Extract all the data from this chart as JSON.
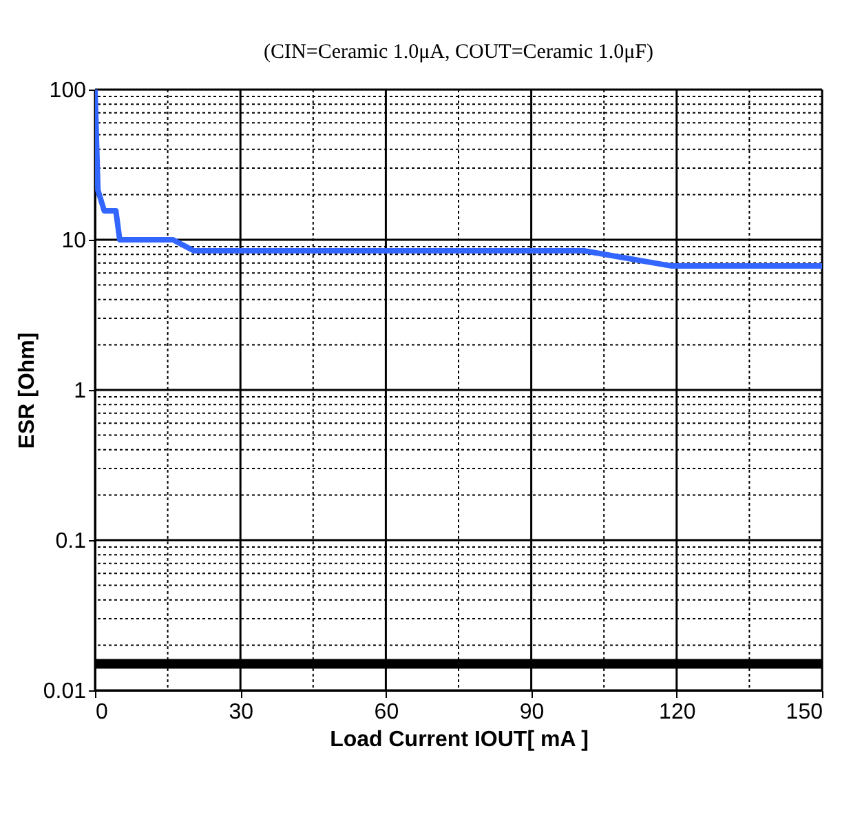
{
  "chart_data": {
    "type": "line",
    "subtitle": "(CIN=Ceramic 1.0μA, COUT=Ceramic 1.0μF)",
    "xlabel": "Load Current IOUT[ mA ]",
    "ylabel": "ESR [Ohm]",
    "x": [
      0,
      0.6,
      1.9,
      4.3,
      5.1,
      16.1,
      20.4,
      100.9,
      118.8,
      150
    ],
    "series": [
      {
        "color": "#3366ff",
        "values": [
          100,
          21.4,
          15.6,
          15.6,
          10,
          10,
          8.45,
          8.45,
          6.7,
          6.7
        ]
      }
    ],
    "ref_lines": [
      {
        "axis": "y",
        "value": 0.015,
        "color": "#000000"
      }
    ],
    "log": "y",
    "grid": true,
    "line_style": "solid",
    "marker": "none",
    "xlim": [
      0,
      150
    ],
    "xticks": [
      0,
      30,
      60,
      90,
      120,
      150
    ],
    "ylim": [
      0.01,
      100
    ],
    "yticks": [
      0.01,
      0.1,
      1,
      10,
      100
    ]
  }
}
